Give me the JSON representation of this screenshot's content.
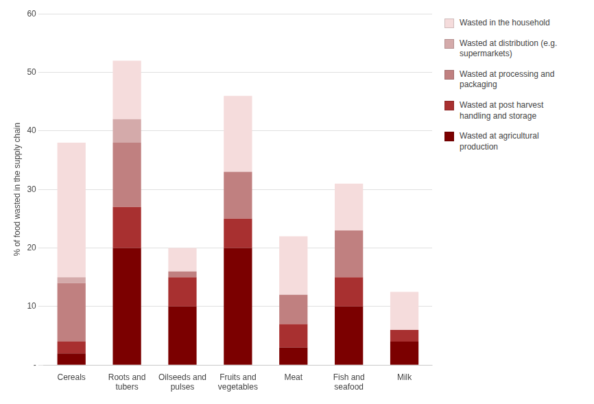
{
  "chart_data": {
    "type": "bar",
    "stacked": true,
    "ylabel": "% of food wasted in the supply chain",
    "categories": [
      "Cereals",
      "Roots and\ntubers",
      "Oilseeds and\npulses",
      "Fruits and\nvegetables",
      "Meat",
      "Fish and\nseafood",
      "Milk"
    ],
    "series": [
      {
        "name": "Wasted at agricultural\nproduction",
        "color": "#7B0000",
        "values": [
          2,
          20,
          10,
          20,
          3,
          10,
          4
        ]
      },
      {
        "name": "Wasted at post harvest\nhandling and storage",
        "color": "#A83030",
        "values": [
          2,
          7,
          5,
          5,
          4,
          5,
          2
        ]
      },
      {
        "name": "Wasted at processing and\npackaging",
        "color": "#C08080",
        "values": [
          10,
          11,
          1,
          8,
          5,
          8,
          0
        ]
      },
      {
        "name": "Wasted at distribution (e.g.\nsupermarkets)",
        "color": "#D4AAAA",
        "values": [
          1,
          4,
          0,
          0,
          0,
          0,
          0
        ]
      },
      {
        "name": "Wasted in the household",
        "color": "#F5DCDC",
        "values": [
          23,
          10,
          4,
          13,
          10,
          8,
          6.5
        ]
      }
    ],
    "ylim": [
      0,
      60
    ],
    "yticks": [
      {
        "value": 0,
        "label": "-"
      },
      10,
      20,
      30,
      40,
      50,
      60
    ],
    "grid": true,
    "legend": "right"
  }
}
